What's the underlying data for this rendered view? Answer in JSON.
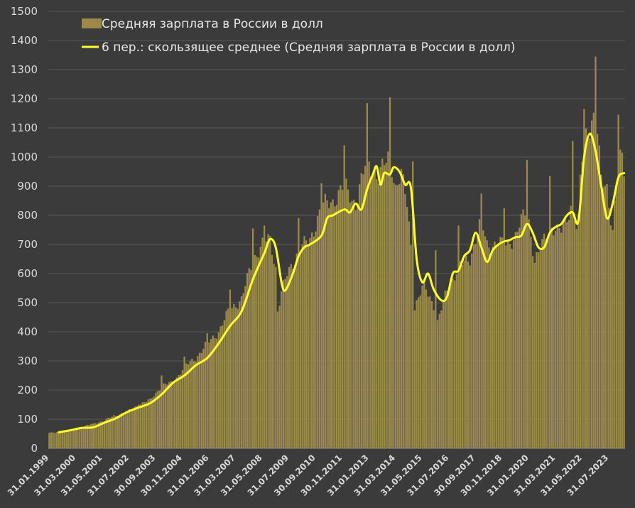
{
  "colors": {
    "background": "#3b3b3b",
    "grid": "#575757",
    "bars": "#9c8a4a",
    "line": "#ffff2a",
    "text": "#d9d9d9"
  },
  "chart_data": {
    "type": "bar",
    "title": "",
    "xlabel": "",
    "ylabel": "",
    "ylim": [
      0,
      1500
    ],
    "yticks": [
      0,
      100,
      200,
      300,
      400,
      500,
      600,
      700,
      800,
      900,
      1000,
      1100,
      1200,
      1300,
      1400,
      1500
    ],
    "grid": true,
    "legend_position": "top-left",
    "x_tick_labels": [
      "31.01.1999",
      "31.03.2000",
      "31.05.2001",
      "31.07.2002",
      "30.09.2003",
      "30.11.2004",
      "31.01.2006",
      "31.03.2007",
      "31.05.2008",
      "31.07.2009",
      "30.09.2010",
      "30.11.2011",
      "31.01.2013",
      "31.03.2014",
      "31.05.2015",
      "31.07.2016",
      "30.09.2017",
      "30.11.2018",
      "31.01.2020",
      "31.03.2021",
      "31.05.2022",
      "31.07.2023"
    ],
    "x_start": "1999-01",
    "x_end": "2024-03",
    "x_interval": "monthly",
    "series": [
      {
        "name": "Средняя зарплата в России в долл",
        "type": "bar",
        "anchors": [
          [
            "1999-01",
            52
          ],
          [
            "1999-12",
            62
          ],
          [
            "2000-03",
            65
          ],
          [
            "2000-12",
            85
          ],
          [
            "2001-06",
            95
          ],
          [
            "2001-12",
            115
          ],
          [
            "2002-06",
            125
          ],
          [
            "2002-12",
            150
          ],
          [
            "2003-06",
            165
          ],
          [
            "2003-12",
            215
          ],
          [
            "2004-06",
            225
          ],
          [
            "2004-12",
            280
          ],
          [
            "2005-06",
            310
          ],
          [
            "2005-12",
            360
          ],
          [
            "2006-06",
            400
          ],
          [
            "2006-12",
            480
          ],
          [
            "2007-06",
            510
          ],
          [
            "2007-12",
            650
          ],
          [
            "2008-06",
            710
          ],
          [
            "2008-09",
            715
          ],
          [
            "2008-12",
            620
          ],
          [
            "2009-01",
            475
          ],
          [
            "2009-03",
            535
          ],
          [
            "2009-06",
            595
          ],
          [
            "2009-12",
            680
          ],
          [
            "2010-06",
            715
          ],
          [
            "2010-12",
            830
          ],
          [
            "2011-06",
            850
          ],
          [
            "2011-12",
            900
          ],
          [
            "2012-06",
            840
          ],
          [
            "2012-12",
            990
          ],
          [
            "2013-06",
            930
          ],
          [
            "2013-12",
            1010
          ],
          [
            "2014-03",
            895
          ],
          [
            "2014-06",
            935
          ],
          [
            "2014-09",
            840
          ],
          [
            "2014-12",
            630
          ],
          [
            "2015-01",
            485
          ],
          [
            "2015-06",
            560
          ],
          [
            "2015-12",
            480
          ],
          [
            "2016-01",
            430
          ],
          [
            "2016-06",
            545
          ],
          [
            "2016-12",
            620
          ],
          [
            "2017-06",
            655
          ],
          [
            "2017-12",
            780
          ],
          [
            "2018-03",
            700
          ],
          [
            "2018-06",
            700
          ],
          [
            "2018-12",
            700
          ],
          [
            "2019-06",
            725
          ],
          [
            "2019-12",
            830
          ],
          [
            "2020-04",
            640
          ],
          [
            "2020-06",
            665
          ],
          [
            "2020-12",
            770
          ],
          [
            "2021-04",
            740
          ],
          [
            "2021-06",
            745
          ],
          [
            "2021-12",
            850
          ],
          [
            "2022-02",
            750
          ],
          [
            "2022-04",
            920
          ],
          [
            "2022-06",
            1070
          ],
          [
            "2022-12",
            1150
          ],
          [
            "2023-03",
            920
          ],
          [
            "2023-06",
            900
          ],
          [
            "2023-09",
            745
          ],
          [
            "2023-12",
            1000
          ],
          [
            "2024-03",
            960
          ]
        ],
        "spikes": [
          [
            "2000-12",
            85
          ],
          [
            "2001-12",
            110
          ],
          [
            "2002-12",
            150
          ],
          [
            "2003-12",
            250
          ],
          [
            "2004-12",
            315
          ],
          [
            "2005-12",
            395
          ],
          [
            "2006-12",
            545
          ],
          [
            "2007-12",
            755
          ],
          [
            "2008-06",
            765
          ],
          [
            "2009-12",
            790
          ],
          [
            "2010-12",
            910
          ],
          [
            "2011-12",
            1040
          ],
          [
            "2012-12",
            1185
          ],
          [
            "2013-12",
            1205
          ],
          [
            "2014-12",
            985
          ],
          [
            "2015-12",
            680
          ],
          [
            "2016-12",
            765
          ],
          [
            "2017-12",
            875
          ],
          [
            "2018-12",
            825
          ],
          [
            "2019-12",
            990
          ],
          [
            "2020-12",
            935
          ],
          [
            "2021-12",
            1055
          ],
          [
            "2022-03",
            805
          ],
          [
            "2022-06",
            1165
          ],
          [
            "2022-12",
            1345
          ],
          [
            "2023-12",
            1145
          ],
          [
            "2024-02",
            1015
          ]
        ]
      },
      {
        "name": "6 пер.: скользящее среднее (Средняя зарплата в России в долл)",
        "type": "line",
        "points": [
          [
            "1999-06",
            55
          ],
          [
            "1999-12",
            62
          ],
          [
            "2000-06",
            70
          ],
          [
            "2000-12",
            72
          ],
          [
            "2001-06",
            88
          ],
          [
            "2001-12",
            103
          ],
          [
            "2002-06",
            125
          ],
          [
            "2002-12",
            140
          ],
          [
            "2003-06",
            155
          ],
          [
            "2003-12",
            185
          ],
          [
            "2004-06",
            225
          ],
          [
            "2004-12",
            250
          ],
          [
            "2005-06",
            285
          ],
          [
            "2005-12",
            310
          ],
          [
            "2006-06",
            360
          ],
          [
            "2006-12",
            420
          ],
          [
            "2007-06",
            470
          ],
          [
            "2007-12",
            580
          ],
          [
            "2008-06",
            670
          ],
          [
            "2008-09",
            718
          ],
          [
            "2008-12",
            690
          ],
          [
            "2009-03",
            570
          ],
          [
            "2009-05",
            542
          ],
          [
            "2009-09",
            600
          ],
          [
            "2009-12",
            660
          ],
          [
            "2010-03",
            690
          ],
          [
            "2010-06",
            700
          ],
          [
            "2010-12",
            730
          ],
          [
            "2011-03",
            790
          ],
          [
            "2011-06",
            800
          ],
          [
            "2011-12",
            820
          ],
          [
            "2012-03",
            810
          ],
          [
            "2012-06",
            840
          ],
          [
            "2012-09",
            820
          ],
          [
            "2012-12",
            890
          ],
          [
            "2013-03",
            940
          ],
          [
            "2013-05",
            968
          ],
          [
            "2013-07",
            905
          ],
          [
            "2013-09",
            945
          ],
          [
            "2013-12",
            940
          ],
          [
            "2014-02",
            965
          ],
          [
            "2014-05",
            950
          ],
          [
            "2014-08",
            905
          ],
          [
            "2014-11",
            895
          ],
          [
            "2015-02",
            650
          ],
          [
            "2015-05",
            570
          ],
          [
            "2015-08",
            600
          ],
          [
            "2015-11",
            545
          ],
          [
            "2016-03",
            508
          ],
          [
            "2016-06",
            520
          ],
          [
            "2016-09",
            600
          ],
          [
            "2016-12",
            610
          ],
          [
            "2017-03",
            660
          ],
          [
            "2017-06",
            680
          ],
          [
            "2017-09",
            740
          ],
          [
            "2017-12",
            690
          ],
          [
            "2018-03",
            640
          ],
          [
            "2018-06",
            680
          ],
          [
            "2018-09",
            700
          ],
          [
            "2018-12",
            710
          ],
          [
            "2019-03",
            715
          ],
          [
            "2019-06",
            725
          ],
          [
            "2019-09",
            730
          ],
          [
            "2019-12",
            770
          ],
          [
            "2020-03",
            740
          ],
          [
            "2020-06",
            690
          ],
          [
            "2020-09",
            690
          ],
          [
            "2020-12",
            740
          ],
          [
            "2021-03",
            760
          ],
          [
            "2021-06",
            770
          ],
          [
            "2021-09",
            800
          ],
          [
            "2021-12",
            810
          ],
          [
            "2022-03",
            780
          ],
          [
            "2022-06",
            1000
          ],
          [
            "2022-09",
            1080
          ],
          [
            "2022-12",
            1020
          ],
          [
            "2023-03",
            900
          ],
          [
            "2023-06",
            790
          ],
          [
            "2023-09",
            840
          ],
          [
            "2023-12",
            930
          ],
          [
            "2024-03",
            945
          ]
        ]
      }
    ]
  }
}
